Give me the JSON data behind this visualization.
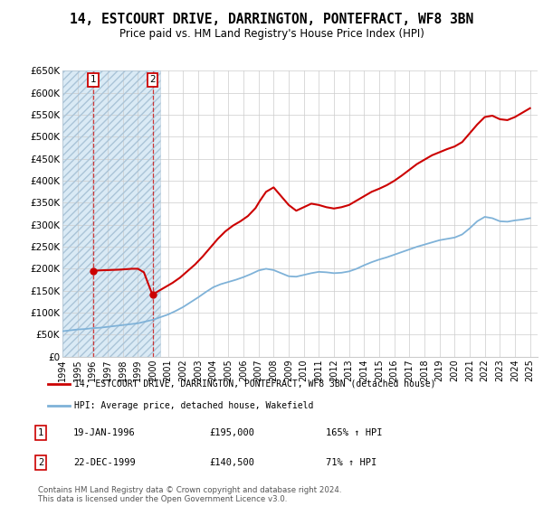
{
  "title": "14, ESTCOURT DRIVE, DARRINGTON, PONTEFRACT, WF8 3BN",
  "subtitle": "Price paid vs. HM Land Registry's House Price Index (HPI)",
  "legend_line1": "14, ESTCOURT DRIVE, DARRINGTON, PONTEFRACT, WF8 3BN (detached house)",
  "legend_line2": "HPI: Average price, detached house, Wakefield",
  "footer": "Contains HM Land Registry data © Crown copyright and database right 2024.\nThis data is licensed under the Open Government Licence v3.0.",
  "transactions": [
    {
      "label": "1",
      "date": "19-JAN-1996",
      "price": 195000,
      "price_str": "£195,000",
      "hpi_note": "165% ↑ HPI",
      "year": 1996.05
    },
    {
      "label": "2",
      "date": "22-DEC-1999",
      "price": 140500,
      "price_str": "£140,500",
      "hpi_note": "71% ↑ HPI",
      "year": 1999.97
    }
  ],
  "hpi_data_x": [
    1994.0,
    1994.5,
    1995.0,
    1995.5,
    1996.0,
    1996.5,
    1997.0,
    1997.5,
    1998.0,
    1998.5,
    1999.0,
    1999.5,
    2000.0,
    2000.5,
    2001.0,
    2001.5,
    2002.0,
    2002.5,
    2003.0,
    2003.5,
    2004.0,
    2004.5,
    2005.0,
    2005.5,
    2006.0,
    2006.5,
    2007.0,
    2007.5,
    2008.0,
    2008.5,
    2009.0,
    2009.5,
    2010.0,
    2010.5,
    2011.0,
    2011.5,
    2012.0,
    2012.5,
    2013.0,
    2013.5,
    2014.0,
    2014.5,
    2015.0,
    2015.5,
    2016.0,
    2016.5,
    2017.0,
    2017.5,
    2018.0,
    2018.5,
    2019.0,
    2019.5,
    2020.0,
    2020.5,
    2021.0,
    2021.5,
    2022.0,
    2022.5,
    2023.0,
    2023.5,
    2024.0,
    2024.5,
    2025.0
  ],
  "hpi_data_y": [
    58000,
    60000,
    62000,
    63000,
    65000,
    66000,
    68000,
    70000,
    72000,
    74000,
    76000,
    80000,
    84000,
    90000,
    96000,
    104000,
    113000,
    124000,
    135000,
    147000,
    158000,
    165000,
    170000,
    175000,
    181000,
    188000,
    196000,
    200000,
    197000,
    190000,
    183000,
    182000,
    186000,
    190000,
    193000,
    192000,
    190000,
    191000,
    194000,
    200000,
    208000,
    215000,
    221000,
    226000,
    232000,
    238000,
    244000,
    250000,
    255000,
    260000,
    265000,
    268000,
    271000,
    278000,
    292000,
    308000,
    318000,
    315000,
    308000,
    307000,
    310000,
    312000,
    315000
  ],
  "house_price_x": [
    1996.05,
    1996.3,
    1996.6,
    1997.0,
    1997.4,
    1997.8,
    1998.2,
    1998.6,
    1999.0,
    1999.4,
    1999.97,
    2000.3,
    2000.8,
    2001.3,
    2001.8,
    2002.3,
    2002.8,
    2003.3,
    2003.8,
    2004.3,
    2004.8,
    2005.3,
    2005.8,
    2006.3,
    2006.8,
    2007.1,
    2007.5,
    2008.0,
    2008.5,
    2009.0,
    2009.5,
    2010.0,
    2010.5,
    2011.0,
    2011.5,
    2012.0,
    2012.5,
    2013.0,
    2013.5,
    2014.0,
    2014.5,
    2015.0,
    2015.5,
    2016.0,
    2016.5,
    2017.0,
    2017.5,
    2018.0,
    2018.5,
    2019.0,
    2019.5,
    2020.0,
    2020.5,
    2021.0,
    2021.5,
    2022.0,
    2022.5,
    2023.0,
    2023.5,
    2024.0,
    2024.5,
    2025.0
  ],
  "house_price_y": [
    195000,
    196000,
    196500,
    197000,
    197500,
    198000,
    199000,
    200000,
    200000,
    192000,
    140500,
    148000,
    158000,
    168000,
    180000,
    195000,
    210000,
    228000,
    248000,
    268000,
    285000,
    298000,
    308000,
    320000,
    338000,
    355000,
    375000,
    385000,
    365000,
    345000,
    332000,
    340000,
    348000,
    345000,
    340000,
    337000,
    340000,
    345000,
    355000,
    365000,
    375000,
    382000,
    390000,
    400000,
    412000,
    425000,
    438000,
    448000,
    458000,
    465000,
    472000,
    478000,
    488000,
    508000,
    528000,
    545000,
    548000,
    540000,
    538000,
    545000,
    555000,
    565000
  ],
  "ylim": [
    0,
    650000
  ],
  "xlim": [
    1994,
    2025.5
  ],
  "yticks": [
    0,
    50000,
    100000,
    150000,
    200000,
    250000,
    300000,
    350000,
    400000,
    450000,
    500000,
    550000,
    600000,
    650000
  ],
  "ytick_labels": [
    "£0",
    "£50K",
    "£100K",
    "£150K",
    "£200K",
    "£250K",
    "£300K",
    "£350K",
    "£400K",
    "£450K",
    "£500K",
    "£550K",
    "£600K",
    "£650K"
  ],
  "xticks": [
    1994,
    1995,
    1996,
    1997,
    1998,
    1999,
    2000,
    2001,
    2002,
    2003,
    2004,
    2005,
    2006,
    2007,
    2008,
    2009,
    2010,
    2011,
    2012,
    2013,
    2014,
    2015,
    2016,
    2017,
    2018,
    2019,
    2020,
    2021,
    2022,
    2023,
    2024,
    2025
  ],
  "red_color": "#cc0000",
  "blue_color": "#7fb2d8",
  "hatch_edgecolor": "#aac4d8",
  "hatch_facecolor": "#daeaf5",
  "grid_color": "#cccccc",
  "legend_border_color": "#aaaaaa",
  "footer_color": "#555555"
}
